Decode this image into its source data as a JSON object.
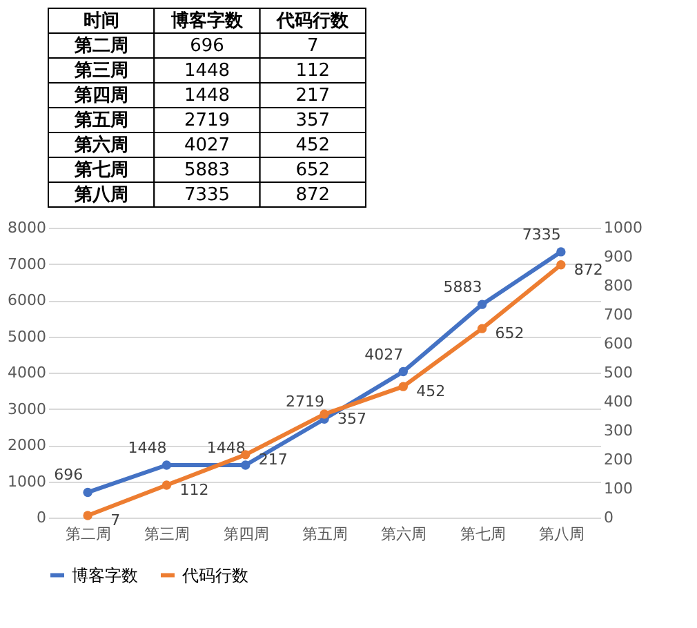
{
  "chart_data": [
    {
      "type": "other",
      "annotations": [
        "时间"
      ],
      "categories": [
        "第二周",
        "第三周",
        "第四周",
        "第五周",
        "第六周",
        "第七周",
        "第八周"
      ],
      "series": [
        {
          "name": "博客字数",
          "values": [
            696,
            1448,
            1448,
            2719,
            4027,
            5883,
            7335
          ]
        },
        {
          "name": "代码行数",
          "values": [
            7,
            112,
            217,
            357,
            452,
            652,
            872
          ]
        }
      ],
      "data_labels": true
    },
    {
      "type": "line",
      "categories": [
        "第二周",
        "第三周",
        "第四周",
        "第五周",
        "第六周",
        "第七周",
        "第八周"
      ],
      "series": [
        {
          "name": "博客字数",
          "color": "#4472c4",
          "values": [
            696,
            1448,
            1448,
            2719,
            4027,
            5883,
            7335
          ]
        },
        {
          "name": "代码行数",
          "color": "#ed7d31",
          "axis": "y2",
          "values": [
            7,
            112,
            217,
            357,
            452,
            652,
            872
          ]
        }
      ],
      "ylim": [
        0,
        8000
      ],
      "yticks": [
        0,
        1000,
        2000,
        3000,
        4000,
        5000,
        6000,
        7000,
        8000
      ],
      "y2lim": [
        0,
        1000
      ],
      "y2ticks": [
        0,
        100,
        200,
        300,
        400,
        500,
        600,
        700,
        800,
        900,
        1000
      ],
      "grid": "y",
      "legend": "bottom",
      "marker": "circle",
      "line_style": "solid",
      "data_labels": true
    }
  ]
}
